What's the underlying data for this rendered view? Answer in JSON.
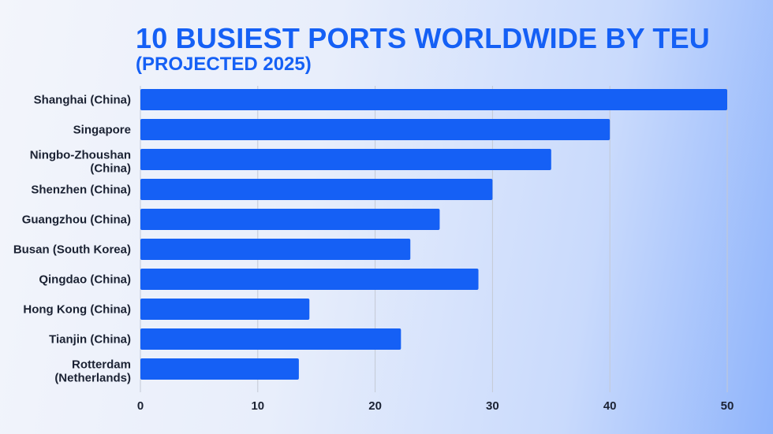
{
  "chart_data": {
    "type": "bar",
    "orientation": "horizontal",
    "title": "10 BUSIEST PORTS WORLDWIDE BY TEU",
    "subtitle": "(PROJECTED 2025)",
    "xlabel": "",
    "ylabel": "",
    "xlim": [
      0,
      50
    ],
    "xticks": [
      0,
      10,
      20,
      30,
      40,
      50
    ],
    "grid": true,
    "categories": [
      "Shanghai (China)",
      "Singapore",
      "Ningbo-Zhoushan (China)",
      "Shenzhen (China)",
      "Guangzhou (China)",
      "Busan (South Korea)",
      "Qingdao (China)",
      "Hong Kong (China)",
      "Tianjin (China)",
      "Rotterdam (Netherlands)"
    ],
    "category_lines": [
      [
        "Shanghai (China)"
      ],
      [
        "Singapore"
      ],
      [
        "Ningbo-Zhoushan",
        "(China)"
      ],
      [
        "Shenzhen (China)"
      ],
      [
        "Guangzhou (China)"
      ],
      [
        "Busan (South Korea)"
      ],
      [
        "Qingdao (China)"
      ],
      [
        "Hong Kong (China)"
      ],
      [
        "Tianjin (China)"
      ],
      [
        "Rotterdam",
        "(Netherlands)"
      ]
    ],
    "values": [
      50,
      40,
      35,
      30,
      25.5,
      23,
      28.8,
      14.4,
      22.2,
      13.5
    ],
    "colors": {
      "bar": "#1560f5",
      "title": "#1560f5",
      "text": "#1b2233",
      "grid": "#c4c9d4"
    }
  }
}
